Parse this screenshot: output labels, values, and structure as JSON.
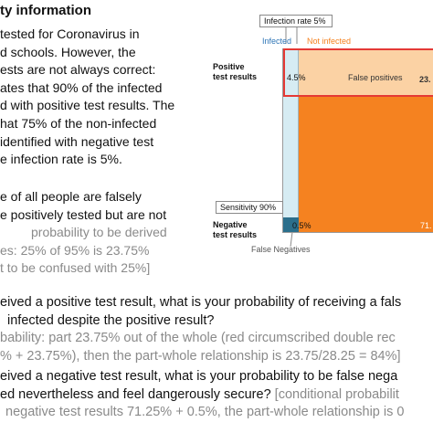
{
  "heading": "ty information",
  "left_text": [
    "tested for Coronavirus in",
    "d schools. However, the",
    "ests are not always correct:",
    "ates that 90% of the infected",
    "d with positive test results. The",
    "hat 75% of the non-infected",
    "identified with negative test",
    "e infection rate is 5%."
  ],
  "task_line1": "e of all people are falsely",
  "task_line2": "e positively tested but are not",
  "task_line3_gray": "probability to be derived",
  "task_line4_gray": "es: 25% of 95% is 23.75%",
  "task_line5_gray": "t to be confused with 25%]",
  "q1_line1": "eived a positive test result, what is your probability of receiving a fals",
  "q1_line2": "infected despite the positive result?",
  "q1_ans1": "bability: part 23.75% out of the whole (red circumscribed double rec",
  "q1_ans2": "% + 23.75%), then the part-whole relationship is 23.75/28.25 = 84%]",
  "q2_line1": "eived a negative test result, what is your probability to be false nega",
  "q2_line2_black": "ed nevertheless and feel dangerously secure?",
  "q2_line2_gray": " [conditional probabilit",
  "q2_line3": "negative test results 71.25% + 0.5%, the part-whole relationship is 0",
  "diagram": {
    "infection_rate_label": "Infection rate 5%",
    "infected_label": "Infected",
    "not_infected_label": "Not infected",
    "positive_label_line1": "Positive",
    "positive_label_line2": "test results",
    "negative_label_line1": "Negative",
    "negative_label_line2": "test results",
    "sensitivity_label": "Sensitivity 90%",
    "true_pos_value": "4.5%",
    "false_pos_label": "False positives",
    "false_pos_value": "23.",
    "false_neg_value": "0.5%",
    "true_neg_value": "71.",
    "false_neg_label": "False Negatives",
    "colors": {
      "infected_fill": "#d6ecf3",
      "false_neg_fill": "#2b6f8c",
      "false_pos_fill": "#fbd2a4",
      "true_neg_fill": "#f58220",
      "infected_text": "#2e75b6",
      "not_infected_text": "#f58220",
      "red_outline": "#e53935"
    }
  }
}
